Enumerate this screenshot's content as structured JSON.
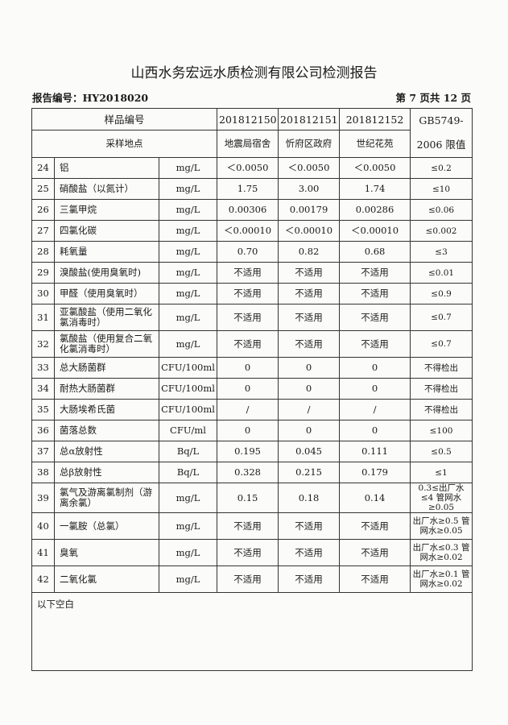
{
  "title": "山西水务宏远水质检测有限公司检测报告",
  "report_no": "报告编号：HY2018020",
  "page_info": "第 7 页共 12 页",
  "header": {
    "sample_no_label": "样品编号",
    "location_label": "采样地点",
    "limit_label_1": "GB5749-",
    "limit_label_2": "2006 限值",
    "samples": [
      "201812150",
      "201812151",
      "201812152"
    ],
    "locations": [
      "地震局宿舍",
      "忻府区政府",
      "世纪花苑"
    ]
  },
  "rows": [
    {
      "no": "24",
      "item": "铝",
      "unit": "mg/L",
      "v": [
        "＜0.0050",
        "＜0.0050",
        "＜0.0050"
      ],
      "limit": "≤0.2"
    },
    {
      "no": "25",
      "item": "硝酸盐（以氮计）",
      "unit": "mg/L",
      "v": [
        "1.75",
        "3.00",
        "1.74"
      ],
      "limit": "≤10"
    },
    {
      "no": "26",
      "item": "三氯甲烷",
      "unit": "mg/L",
      "v": [
        "0.00306",
        "0.00179",
        "0.00286"
      ],
      "limit": "≤0.06"
    },
    {
      "no": "27",
      "item": "四氯化碳",
      "unit": "mg/L",
      "v": [
        "＜0.00010",
        "＜0.00010",
        "＜0.00010"
      ],
      "limit": "≤0.002"
    },
    {
      "no": "28",
      "item": "耗氧量",
      "unit": "mg/L",
      "v": [
        "0.70",
        "0.82",
        "0.68"
      ],
      "limit": "≤3"
    },
    {
      "no": "29",
      "item": "溴酸盐(使用臭氧时)",
      "unit": "mg/L",
      "v": [
        "不适用",
        "不适用",
        "不适用"
      ],
      "limit": "≤0.01"
    },
    {
      "no": "30",
      "item": "甲醛（使用臭氧时）",
      "unit": "mg/L",
      "v": [
        "不适用",
        "不适用",
        "不适用"
      ],
      "limit": "≤0.9"
    },
    {
      "no": "31",
      "item": "亚氯酸盐（使用二氧化氯消毒时）",
      "unit": "mg/L",
      "v": [
        "不适用",
        "不适用",
        "不适用"
      ],
      "limit": "≤0.7",
      "double": true
    },
    {
      "no": "32",
      "item": "氯酸盐（使用复合二氧化氯消毒时）",
      "unit": "mg/L",
      "v": [
        "不适用",
        "不适用",
        "不适用"
      ],
      "limit": "≤0.7",
      "double": true
    },
    {
      "no": "33",
      "item": "总大肠菌群",
      "unit": "CFU/100ml",
      "v": [
        "0",
        "0",
        "0"
      ],
      "limit": "不得检出"
    },
    {
      "no": "34",
      "item": "耐热大肠菌群",
      "unit": "CFU/100ml",
      "v": [
        "0",
        "0",
        "0"
      ],
      "limit": "不得检出"
    },
    {
      "no": "35",
      "item": "大肠埃希氏菌",
      "unit": "CFU/100ml",
      "v": [
        "/",
        "/",
        "/"
      ],
      "limit": "不得检出"
    },
    {
      "no": "36",
      "item": "菌落总数",
      "unit": "CFU/ml",
      "v": [
        "0",
        "0",
        "0"
      ],
      "limit": "≤100"
    },
    {
      "no": "37",
      "item": "总α放射性",
      "unit": "Bq/L",
      "v": [
        "0.195",
        "0.045",
        "0.111"
      ],
      "limit": "≤0.5"
    },
    {
      "no": "38",
      "item": "总β放射性",
      "unit": "Bq/L",
      "v": [
        "0.328",
        "0.215",
        "0.179"
      ],
      "limit": "≤1"
    },
    {
      "no": "39",
      "item": "氯气及游离氯制剂（游离余氯）",
      "unit": "mg/L",
      "v": [
        "0.15",
        "0.18",
        "0.14"
      ],
      "limit": "0.3≤出厂水≤4 管网水≥0.05",
      "double": true
    },
    {
      "no": "40",
      "item": "一氯胺（总氯）",
      "unit": "mg/L",
      "v": [
        "不适用",
        "不适用",
        "不适用"
      ],
      "limit": "出厂水≥0.5 管网水≥0.05",
      "double": true
    },
    {
      "no": "41",
      "item": "臭氧",
      "unit": "mg/L",
      "v": [
        "不适用",
        "不适用",
        "不适用"
      ],
      "limit": "出厂水≤0.3 管网水≥0.02",
      "double": true
    },
    {
      "no": "42",
      "item": "二氧化氯",
      "unit": "mg/L",
      "v": [
        "不适用",
        "不适用",
        "不适用"
      ],
      "limit": "出厂水≥0.1 管网水≥0.02",
      "double": true
    }
  ],
  "footer_note": "以下空白"
}
